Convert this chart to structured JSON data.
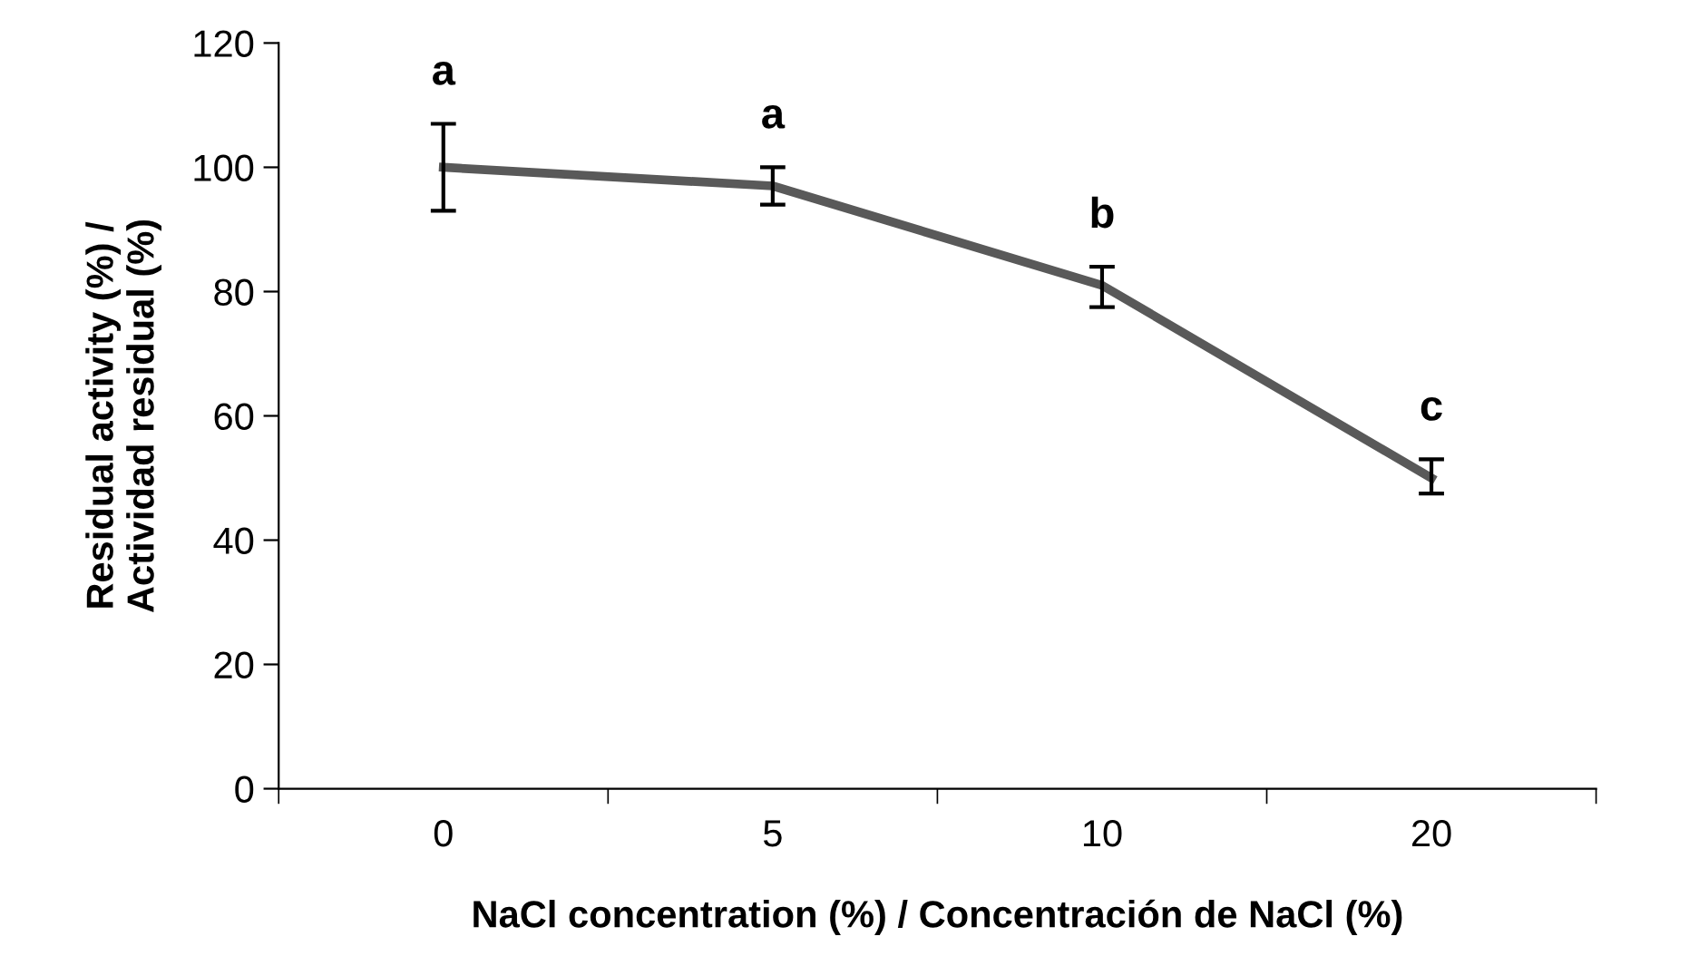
{
  "chart_data": {
    "type": "line",
    "xlabel": "NaCl concentration (%) / Concentración de NaCl (%)",
    "ylabel": "Residual activity (%) /\nActividad residual (%)",
    "categories": [
      "0",
      "5",
      "10",
      "20"
    ],
    "series": [
      {
        "color": "#595959",
        "values": [
          100,
          97,
          81,
          50
        ],
        "errors": [
          [
            93,
            107
          ],
          [
            94,
            100
          ],
          [
            77.5,
            84
          ],
          [
            47.5,
            53
          ]
        ]
      }
    ],
    "ylim": [
      0,
      120
    ],
    "yticks": [
      0,
      20,
      40,
      60,
      80,
      100,
      120
    ],
    "grid": false,
    "legend": false,
    "marker": "none",
    "line_style": "solid",
    "annotations": [
      "a",
      "a",
      "b",
      "c"
    ]
  }
}
